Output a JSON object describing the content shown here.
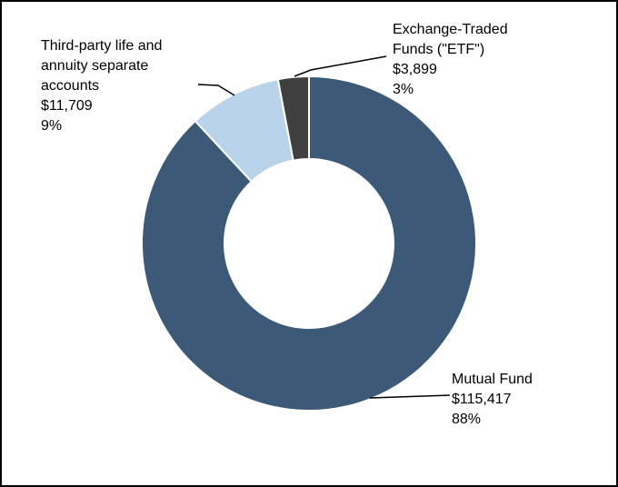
{
  "chart_data": {
    "type": "pie",
    "variant": "donut",
    "unit_prefix": "$",
    "slices": [
      {
        "name": "Mutual Fund",
        "value": 115417,
        "value_label": "$115,417",
        "percent_label": "88%",
        "color": "#3c5a78"
      },
      {
        "name": "Third-party life and annuity separate accounts",
        "name_lines": [
          "Third-party life and",
          "annuity separate",
          "accounts"
        ],
        "value": 11709,
        "value_label": "$11,709",
        "percent_label": "9%",
        "color": "#b8d3ea"
      },
      {
        "name": "Exchange-Traded Funds (\"ETF\")",
        "name_lines": [
          "Exchange-Traded",
          "Funds (\"ETF\")"
        ],
        "value": 3899,
        "value_label": "$3,899",
        "percent_label": "3%",
        "color": "#404040"
      }
    ],
    "legend": "none",
    "labels": "outside with leader lines"
  }
}
